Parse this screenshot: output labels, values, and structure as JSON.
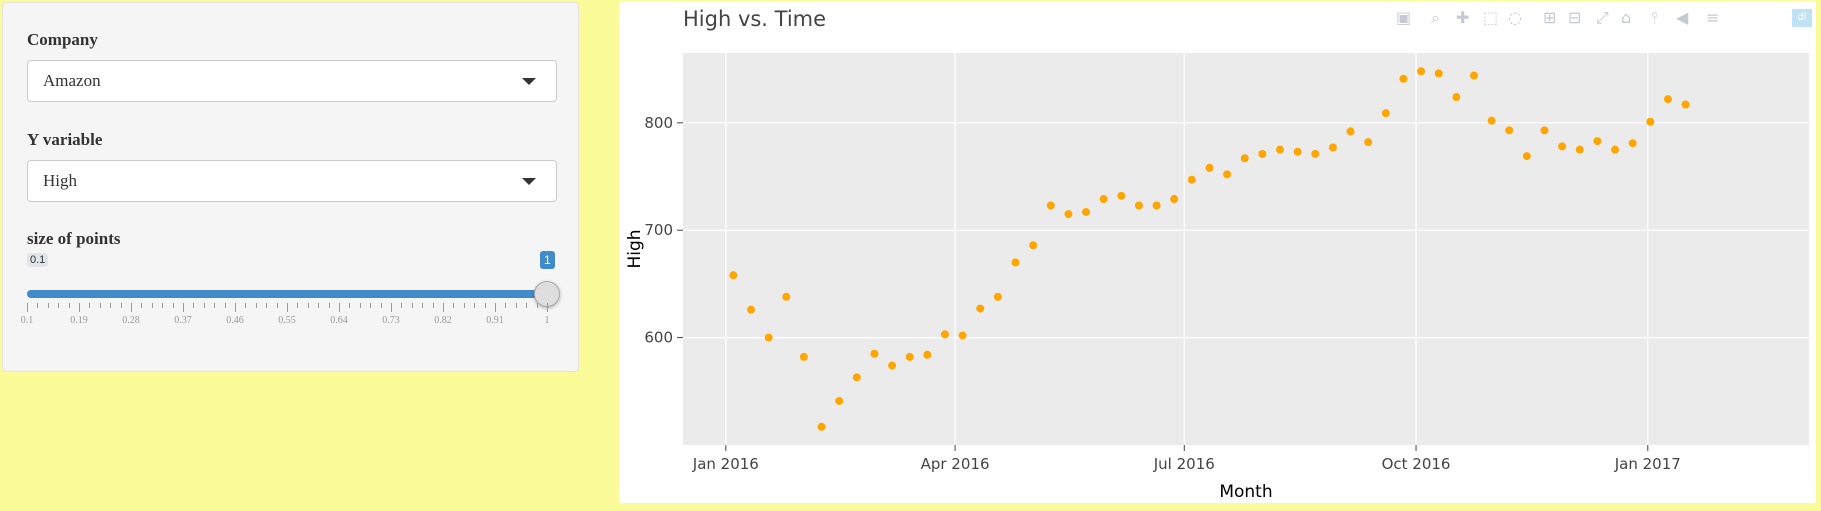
{
  "sidebar": {
    "company_label": "Company",
    "company_value": "Amazon",
    "yvar_label": "Y variable",
    "yvar_value": "High",
    "size_label": "size of points",
    "slider": {
      "min_label": "0.1",
      "max_label": "1",
      "value": 1,
      "min": 0.1,
      "max": 1,
      "ticks": [
        "0.1",
        "0.19",
        "0.28",
        "0.37",
        "0.46",
        "0.55",
        "0.64",
        "0.73",
        "0.82",
        "0.91",
        "1"
      ]
    }
  },
  "plot": {
    "modebar_icons": [
      "camera-icon",
      "zoom-icon",
      "pan-icon",
      "box-select-icon",
      "lasso-icon",
      "zoom-in-icon",
      "zoom-out-icon",
      "autoscale-icon",
      "reset-icon",
      "spike-lines-icon",
      "hover-closest-icon",
      "hover-compare-icon",
      "plotly-logo-icon"
    ]
  },
  "colors": {
    "page_bg": "#fbfb9a",
    "point": "#ffa500",
    "plot_bg": "#ebebeb",
    "slider_accent": "#428bca"
  },
  "chart_data": {
    "type": "scatter",
    "title": "High vs. Time",
    "xlabel": "Month",
    "ylabel": "High",
    "x_tick_labels": [
      "Jan 2016",
      "Apr 2016",
      "Jul 2016",
      "Oct 2016",
      "Jan 2017"
    ],
    "x_ticks": [
      "2016-01-01",
      "2016-04-01",
      "2016-07-01",
      "2016-10-01",
      "2017-01-01"
    ],
    "y_ticks": [
      600,
      700,
      800
    ],
    "xlim": [
      "2015-12-15",
      "2017-03-06"
    ],
    "ylim": [
      500,
      865
    ],
    "grid": true,
    "series": [
      {
        "color": "#ffa500",
        "points": [
          [
            "2016-01-04",
            658
          ],
          [
            "2016-01-11",
            626
          ],
          [
            "2016-01-18",
            600
          ],
          [
            "2016-01-25",
            638
          ],
          [
            "2016-02-01",
            582
          ],
          [
            "2016-02-08",
            517
          ],
          [
            "2016-02-15",
            541
          ],
          [
            "2016-02-22",
            563
          ],
          [
            "2016-02-29",
            585
          ],
          [
            "2016-03-07",
            574
          ],
          [
            "2016-03-14",
            582
          ],
          [
            "2016-03-21",
            584
          ],
          [
            "2016-03-28",
            603
          ],
          [
            "2016-04-04",
            602
          ],
          [
            "2016-04-11",
            627
          ],
          [
            "2016-04-18",
            638
          ],
          [
            "2016-04-25",
            670
          ],
          [
            "2016-05-02",
            686
          ],
          [
            "2016-05-09",
            723
          ],
          [
            "2016-05-16",
            715
          ],
          [
            "2016-05-23",
            717
          ],
          [
            "2016-05-30",
            729
          ],
          [
            "2016-06-06",
            732
          ],
          [
            "2016-06-13",
            723
          ],
          [
            "2016-06-20",
            723
          ],
          [
            "2016-06-27",
            729
          ],
          [
            "2016-07-04",
            747
          ],
          [
            "2016-07-11",
            758
          ],
          [
            "2016-07-18",
            752
          ],
          [
            "2016-07-25",
            767
          ],
          [
            "2016-08-01",
            771
          ],
          [
            "2016-08-08",
            775
          ],
          [
            "2016-08-15",
            773
          ],
          [
            "2016-08-22",
            771
          ],
          [
            "2016-08-29",
            777
          ],
          [
            "2016-09-05",
            792
          ],
          [
            "2016-09-12",
            782
          ],
          [
            "2016-09-19",
            809
          ],
          [
            "2016-09-26",
            841
          ],
          [
            "2016-10-03",
            848
          ],
          [
            "2016-10-10",
            846
          ],
          [
            "2016-10-17",
            824
          ],
          [
            "2016-10-24",
            844
          ],
          [
            "2016-10-31",
            802
          ],
          [
            "2016-11-07",
            793
          ],
          [
            "2016-11-14",
            769
          ],
          [
            "2016-11-21",
            793
          ],
          [
            "2016-11-28",
            778
          ],
          [
            "2016-12-05",
            775
          ],
          [
            "2016-12-12",
            783
          ],
          [
            "2016-12-19",
            775
          ],
          [
            "2016-12-26",
            781
          ],
          [
            "2017-01-02",
            801
          ],
          [
            "2017-01-09",
            822
          ],
          [
            "2017-01-16",
            817
          ]
        ]
      }
    ]
  }
}
